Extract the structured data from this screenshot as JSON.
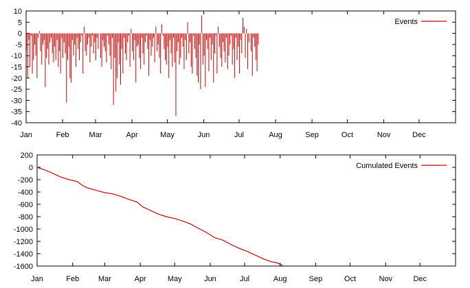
{
  "colors": {
    "series": "#cc0000",
    "axis": "#000000",
    "background": "#ffffff"
  },
  "chart_data": [
    {
      "type": "bar",
      "legend": "Events",
      "legend_position": "top-right",
      "grid": false,
      "x_range": [
        "Jan 1",
        "Dec 31"
      ],
      "x_ticks": [
        "Jan",
        "Feb",
        "Mar",
        "Apr",
        "May",
        "Jun",
        "Jul",
        "Aug",
        "Sep",
        "Oct",
        "Nov",
        "Dec"
      ],
      "ylim": [
        -40,
        10
      ],
      "y_ticks": [
        10,
        5,
        0,
        -5,
        -10,
        -15,
        -20,
        -25,
        -30,
        -35,
        -40
      ],
      "series": [
        {
          "name": "Events",
          "x_start": "Jan 1",
          "x_step_days": 1,
          "values": [
            -8,
            -20,
            -3,
            -15,
            -1,
            -18,
            -12,
            -5,
            -10,
            -20,
            -2,
            1,
            -8,
            -14,
            -5,
            -3,
            -24,
            -11,
            -7,
            -14,
            -4,
            -2,
            -9,
            -13,
            -6,
            -12,
            -3,
            -15,
            -8,
            -18,
            -2,
            -11,
            -4,
            -9,
            -31,
            -12,
            -6,
            -20,
            -22,
            -3,
            -10,
            -5,
            -15,
            -2,
            -7,
            -12,
            -4,
            -1,
            -18,
            3,
            -8,
            -10,
            -5,
            -2,
            -13,
            -6,
            -1,
            -9,
            -4,
            -12,
            -2,
            -7,
            0,
            -11,
            -15,
            -3,
            -6,
            -8,
            -13,
            -1,
            -5,
            -10,
            -16,
            -2,
            -32,
            -11,
            -26,
            -20,
            -4,
            -14,
            -23,
            -7,
            -18,
            -2,
            -9,
            -12,
            -4,
            -1,
            -15,
            2,
            -8,
            -12,
            -3,
            -22,
            -6,
            -5,
            -11,
            -16,
            -2,
            -9,
            -14,
            -4,
            -1,
            -7,
            -19,
            -3,
            -10,
            -6,
            -2,
            -13,
            3,
            -8,
            -5,
            -11,
            -18,
            4,
            -1,
            -7,
            -12,
            -14,
            -6,
            -20,
            -3,
            -9,
            -15,
            -2,
            -13,
            -37,
            -8,
            -4,
            -14,
            -11,
            -2,
            -6,
            -16,
            -3,
            -12,
            5,
            -9,
            -4,
            -15,
            -18,
            -1,
            -7,
            -11,
            -19,
            -22,
            -5,
            -25,
            8,
            -14,
            -10,
            -24,
            -3,
            -7,
            -17,
            -2,
            -12,
            -5,
            -22,
            -9,
            -1,
            -18,
            3,
            -6,
            -11,
            -15,
            -4,
            -8,
            -13,
            -2,
            -16,
            -10,
            -5,
            -1,
            -14,
            -7,
            -20,
            -2,
            -12,
            -6,
            -18,
            -3,
            -9,
            7,
            3,
            -11,
            2,
            -16,
            -4,
            0,
            -8,
            -19,
            -2,
            -6,
            -12,
            -17,
            -5
          ]
        }
      ]
    },
    {
      "type": "line",
      "legend": "Cumulated Events",
      "legend_position": "top-right",
      "grid": false,
      "x_range": [
        "Jan 1",
        "Dec 31"
      ],
      "x_ticks": [
        "Jan",
        "Feb",
        "Mar",
        "Apr",
        "May",
        "Jun",
        "Jul",
        "Aug",
        "Sep",
        "Oct",
        "Nov",
        "Dec"
      ],
      "ylim": [
        -1600,
        200
      ],
      "y_ticks": [
        200,
        0,
        -200,
        -400,
        -600,
        -800,
        -1000,
        -1200,
        -1400,
        -1600
      ],
      "series": [
        {
          "name": "Cumulated Events",
          "points": [
            {
              "x": "Jan 1",
              "y": 0
            },
            {
              "x": "Jan 8",
              "y": -45
            },
            {
              "x": "Jan 15",
              "y": -100
            },
            {
              "x": "Jan 22",
              "y": -160
            },
            {
              "x": "Jan 29",
              "y": -200
            },
            {
              "x": "Feb 5",
              "y": -230
            },
            {
              "x": "Feb 10",
              "y": -300
            },
            {
              "x": "Feb 15",
              "y": -340
            },
            {
              "x": "Feb 22",
              "y": -375
            },
            {
              "x": "Mar 1",
              "y": -410
            },
            {
              "x": "Mar 8",
              "y": -430
            },
            {
              "x": "Mar 15",
              "y": -470
            },
            {
              "x": "Mar 22",
              "y": -520
            },
            {
              "x": "Mar 29",
              "y": -560
            },
            {
              "x": "Apr 3",
              "y": -640
            },
            {
              "x": "Apr 10",
              "y": -700
            },
            {
              "x": "Apr 17",
              "y": -760
            },
            {
              "x": "Apr 24",
              "y": -800
            },
            {
              "x": "May 1",
              "y": -830
            },
            {
              "x": "May 8",
              "y": -870
            },
            {
              "x": "May 15",
              "y": -920
            },
            {
              "x": "May 22",
              "y": -990
            },
            {
              "x": "May 29",
              "y": -1060
            },
            {
              "x": "Jun 5",
              "y": -1140
            },
            {
              "x": "Jun 12",
              "y": -1180
            },
            {
              "x": "Jun 19",
              "y": -1250
            },
            {
              "x": "Jun 26",
              "y": -1310
            },
            {
              "x": "Jul 3",
              "y": -1360
            },
            {
              "x": "Jul 10",
              "y": -1420
            },
            {
              "x": "Jul 17",
              "y": -1480
            },
            {
              "x": "Jul 24",
              "y": -1530
            },
            {
              "x": "Jul 29",
              "y": -1545
            },
            {
              "x": "Aug 3",
              "y": -1590
            }
          ]
        }
      ]
    }
  ]
}
